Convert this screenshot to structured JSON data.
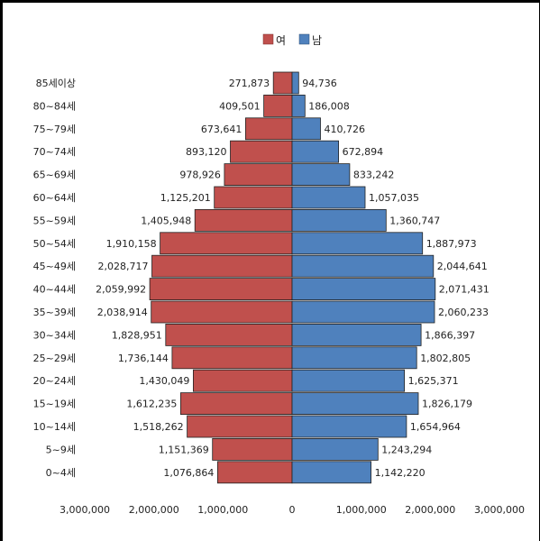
{
  "chart_data": {
    "type": "bar",
    "orientation": "horizontal-pyramid",
    "categories": [
      "85세이상",
      "80~84세",
      "75~79세",
      "70~74세",
      "65~69세",
      "60~64세",
      "55~59세",
      "50~54세",
      "45~49세",
      "40~44세",
      "35~39세",
      "30~34세",
      "25~29세",
      "20~24세",
      "15~19세",
      "10~14세",
      "5~9세",
      "0~4세"
    ],
    "series": [
      {
        "name": "여",
        "color": "#c0504d",
        "values": [
          271873,
          409501,
          673641,
          893120,
          978926,
          1125201,
          1405948,
          1910158,
          2028717,
          2059992,
          2038914,
          1828951,
          1736144,
          1430049,
          1612235,
          1518262,
          1151369,
          1076864
        ]
      },
      {
        "name": "남",
        "color": "#4f81bd",
        "values": [
          94736,
          186008,
          410726,
          672894,
          833242,
          1057035,
          1360747,
          1887973,
          2044641,
          2071431,
          2060233,
          1866397,
          1802805,
          1625371,
          1826179,
          1654964,
          1243294,
          1142220
        ]
      }
    ],
    "data_labels": {
      "female": [
        "271,873",
        "409,501",
        "673,641",
        "893,120",
        "978,926",
        "1,125,201",
        "1,405,948",
        "1,910,158",
        "2,028,717",
        "2,059,992",
        "2,038,914",
        "1,828,951",
        "1,736,144",
        "1,430,049",
        "1,612,235",
        "1,518,262",
        "1,151,369",
        "1,076,864"
      ],
      "male": [
        "94,736",
        "186,008",
        "410,726",
        "672,894",
        "833,242",
        "1,057,035",
        "1,360,747",
        "1,887,973",
        "2,044,641",
        "2,071,431",
        "2,060,233",
        "1,866,397",
        "1,802,805",
        "1,625,371",
        "1,826,179",
        "1,654,964",
        "1,243,294",
        "1,142,220"
      ]
    },
    "xticks": [
      "3,000,000",
      "2,000,000",
      "1,000,000",
      "0",
      "1,000,000",
      "2,000,000",
      "3,000,000"
    ],
    "xlim": [
      -3000000,
      3000000
    ],
    "legend_position": "top",
    "grid": false
  }
}
